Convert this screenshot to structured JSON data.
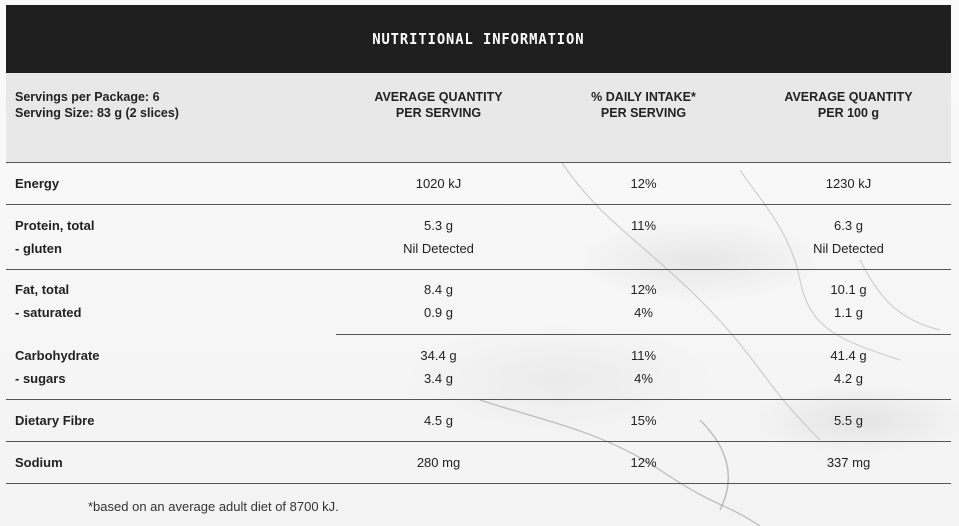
{
  "title": "NUTRITIONAL INFORMATION",
  "header": {
    "servings_per_package": "Servings per Package: 6",
    "serving_size": "Serving Size: 83 g (2 slices)",
    "col1": [
      "AVERAGE QUANTITY",
      "PER SERVING"
    ],
    "col2": [
      "% DAILY INTAKE*",
      "PER SERVING"
    ],
    "col3": [
      "AVERAGE QUANTITY",
      "PER 100 g"
    ]
  },
  "rows": [
    {
      "name": [
        "Energy"
      ],
      "per_serving": [
        "1020 kJ"
      ],
      "daily": [
        "12%"
      ],
      "per_100g": [
        "1230 kJ"
      ]
    },
    {
      "name": [
        "Protein, total",
        "- gluten"
      ],
      "per_serving": [
        "5.3 g",
        "Nil Detected"
      ],
      "daily": [
        "11%"
      ],
      "per_100g": [
        "6.3 g",
        "Nil Detected"
      ]
    },
    {
      "name": [
        "Fat, total",
        "- saturated"
      ],
      "per_serving": [
        "8.4 g",
        "0.9 g"
      ],
      "daily": [
        "12%",
        "4%"
      ],
      "per_100g": [
        "10.1 g",
        "1.1 g"
      ]
    },
    {
      "name": [
        "Carbohydrate",
        "- sugars"
      ],
      "per_serving": [
        "34.4 g",
        "3.4 g"
      ],
      "daily": [
        "11%",
        "4%"
      ],
      "per_100g": [
        "41.4 g",
        "4.2 g"
      ]
    },
    {
      "name": [
        "Dietary Fibre"
      ],
      "per_serving": [
        "4.5 g"
      ],
      "daily": [
        "15%"
      ],
      "per_100g": [
        "5.5 g"
      ]
    },
    {
      "name": [
        "Sodium"
      ],
      "per_serving": [
        "280 mg"
      ],
      "daily": [
        "12%"
      ],
      "per_100g": [
        "337 mg"
      ]
    }
  ],
  "footnote": "*based on an average adult diet of 8700 kJ."
}
